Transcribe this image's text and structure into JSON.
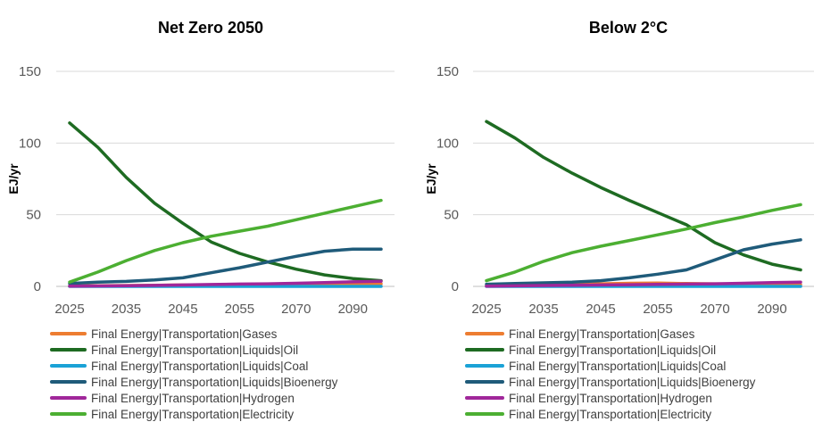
{
  "chart_data": [
    {
      "type": "line",
      "title": "Net Zero 2050",
      "ylabel": "EJ/yr",
      "xlabel": "",
      "ylim": [
        0,
        150
      ],
      "yticks": [
        0,
        50,
        100,
        150
      ],
      "x": [
        2025,
        2030,
        2035,
        2040,
        2045,
        2050,
        2055,
        2060,
        2070,
        2080,
        2090,
        2100
      ],
      "xtick_labels": [
        "2025",
        "2035",
        "2045",
        "2055",
        "2070",
        "2090"
      ],
      "xtick_index": [
        0,
        2,
        4,
        6,
        8,
        10
      ],
      "grid": "horizontal",
      "legend_position": "bottom",
      "series": [
        {
          "name": "Final Energy|Transportation|Gases",
          "color": "#ed7d31",
          "values": [
            0.3,
            0.5,
            0.6,
            0.8,
            1,
            1.1,
            1.2,
            1.3,
            1.4,
            1.5,
            1.6,
            1.7
          ]
        },
        {
          "name": "Final Energy|Transportation|Liquids|Oil",
          "color": "#1e6b22",
          "values": [
            114,
            97,
            76,
            58,
            44,
            31,
            23,
            17,
            12,
            8,
            5.5,
            4
          ]
        },
        {
          "name": "Final Energy|Transportation|Liquids|Coal",
          "color": "#1aa2d6",
          "values": [
            0,
            0,
            0,
            0,
            0,
            0,
            0,
            0,
            0,
            0,
            0,
            0
          ]
        },
        {
          "name": "Final Energy|Transportation|Liquids|Bioenergy",
          "color": "#1f5b7a",
          "values": [
            2,
            3,
            3.5,
            4.5,
            6,
            9.5,
            13,
            17,
            21,
            24.5,
            26,
            26
          ]
        },
        {
          "name": "Final Energy|Transportation|Hydrogen",
          "color": "#a0279a",
          "values": [
            0.2,
            0.3,
            0.5,
            0.7,
            1,
            1.3,
            1.6,
            1.8,
            2.2,
            2.7,
            3.2,
            3.6
          ]
        },
        {
          "name": "Final Energy|Transportation|Electricity",
          "color": "#4caf32",
          "values": [
            3,
            10,
            18,
            25,
            30.5,
            35,
            38.5,
            42,
            46.5,
            51,
            55.5,
            60
          ]
        }
      ]
    },
    {
      "type": "line",
      "title": "Below 2°C",
      "ylabel": "EJ/yr",
      "xlabel": "",
      "ylim": [
        0,
        150
      ],
      "yticks": [
        0,
        50,
        100,
        150
      ],
      "x": [
        2025,
        2030,
        2035,
        2040,
        2045,
        2050,
        2055,
        2060,
        2070,
        2080,
        2090,
        2100
      ],
      "xtick_labels": [
        "2025",
        "2035",
        "2045",
        "2055",
        "2070",
        "2090"
      ],
      "xtick_index": [
        0,
        2,
        4,
        6,
        8,
        10
      ],
      "grid": "horizontal",
      "legend_position": "bottom",
      "series": [
        {
          "name": "Final Energy|Transportation|Gases",
          "color": "#ed7d31",
          "values": [
            0.3,
            0.6,
            1,
            1.4,
            1.8,
            2.2,
            2.3,
            2,
            1.8,
            1.6,
            1.4,
            1.2
          ]
        },
        {
          "name": "Final Energy|Transportation|Liquids|Oil",
          "color": "#1e6b22",
          "values": [
            115,
            103.5,
            90,
            79,
            69,
            60,
            51.5,
            43,
            30.5,
            22,
            15.5,
            11.5
          ]
        },
        {
          "name": "Final Energy|Transportation|Liquids|Coal",
          "color": "#1aa2d6",
          "values": [
            0,
            0,
            0,
            0,
            0,
            0,
            0,
            0,
            0,
            0,
            0,
            0
          ]
        },
        {
          "name": "Final Energy|Transportation|Liquids|Bioenergy",
          "color": "#1f5b7a",
          "values": [
            1.5,
            2,
            2.5,
            3,
            4,
            6,
            8.5,
            11.5,
            18.5,
            25.5,
            29.5,
            32.5
          ]
        },
        {
          "name": "Final Energy|Transportation|Hydrogen",
          "color": "#a0279a",
          "values": [
            0.2,
            0.4,
            0.6,
            0.8,
            1,
            1.2,
            1.4,
            1.6,
            1.8,
            2.2,
            2.6,
            3
          ]
        },
        {
          "name": "Final Energy|Transportation|Electricity",
          "color": "#4caf32",
          "values": [
            4,
            10,
            17.5,
            23.5,
            28,
            32,
            36,
            40,
            44.5,
            48.5,
            53,
            57
          ]
        }
      ]
    }
  ]
}
